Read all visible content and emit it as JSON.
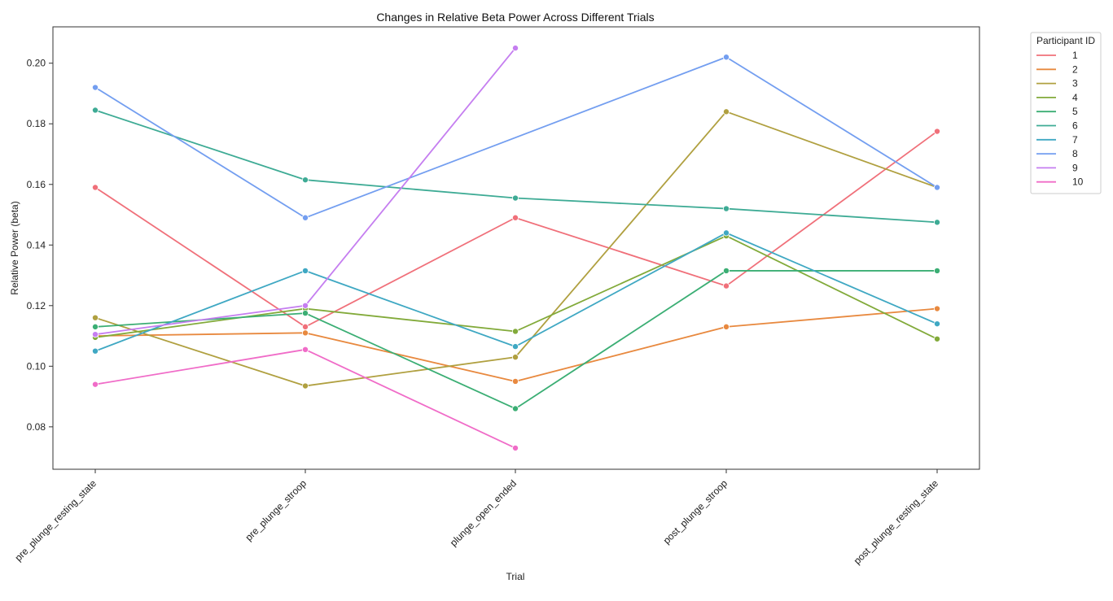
{
  "chart_data": {
    "type": "line",
    "title": "Changes in Relative Beta Power Across Different Trials",
    "xlabel": "Trial",
    "ylabel": "Relative Power (beta)",
    "categories": [
      "pre_plunge_resting_state",
      "pre_plunge_stroop",
      "plunge_open_ended",
      "post_plunge_stroop",
      "post_plunge_resting_state"
    ],
    "ylim": [
      0.066,
      0.212
    ],
    "yticks": [
      0.08,
      0.1,
      0.12,
      0.14,
      0.16,
      0.18,
      0.2
    ],
    "ytick_labels": [
      "0.08",
      "0.10",
      "0.12",
      "0.14",
      "0.16",
      "0.18",
      "0.20"
    ],
    "grid": false,
    "legend": {
      "title": "Participant ID",
      "placement": "outside-top-right"
    },
    "series": [
      {
        "name": "1",
        "color": "#f0707a",
        "values": [
          0.159,
          0.113,
          0.149,
          0.1265,
          0.1775
        ]
      },
      {
        "name": "2",
        "color": "#e8893f",
        "values": [
          0.11,
          0.111,
          0.095,
          0.113,
          0.119
        ]
      },
      {
        "name": "3",
        "color": "#b0a040",
        "values": [
          0.116,
          0.0935,
          0.103,
          0.184,
          0.159
        ]
      },
      {
        "name": "4",
        "color": "#82aa3a",
        "values": [
          0.1095,
          0.119,
          0.1115,
          0.143,
          0.109
        ]
      },
      {
        "name": "5",
        "color": "#3bae74",
        "values": [
          0.113,
          0.1175,
          0.086,
          0.1315,
          0.1315
        ]
      },
      {
        "name": "6",
        "color": "#3eab95",
        "values": [
          0.1845,
          0.1615,
          0.1555,
          0.152,
          0.1475
        ]
      },
      {
        "name": "7",
        "color": "#3fa8c3",
        "values": [
          0.105,
          0.1315,
          0.1065,
          0.144,
          0.114
        ]
      },
      {
        "name": "8",
        "color": "#739ef0",
        "values": [
          0.192,
          0.149,
          null,
          0.202,
          0.159
        ]
      },
      {
        "name": "9",
        "color": "#c57ef0",
        "values": [
          0.1105,
          0.12,
          0.205,
          null,
          null
        ]
      },
      {
        "name": "10",
        "color": "#f06cc8",
        "values": [
          0.094,
          0.1055,
          0.073,
          null,
          null
        ]
      }
    ]
  }
}
